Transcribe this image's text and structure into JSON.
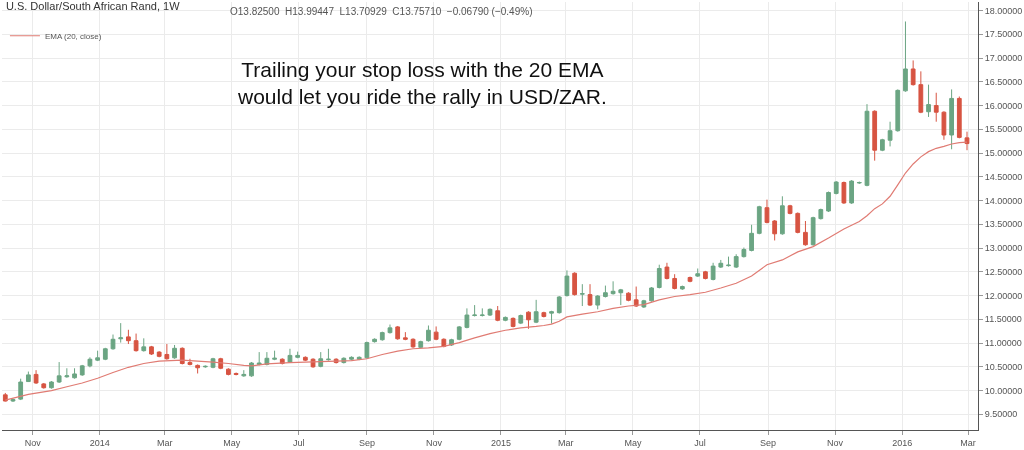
{
  "chart_data": {
    "type": "candlestick",
    "title": "U.S. Dollar/South African Rand, 1W",
    "annotations": [
      "O13.82500  H13.99447  L13.70929  C13.75710  −0.06790 (−0.49%)",
      "Trailing your stop loss with the 20 EMA would let you ride the rally in USD/ZAR."
    ],
    "colors": [
      "#d75442",
      "#6ba583",
      "#6ba583",
      "#6ba583",
      "#d75442",
      "#d75442",
      "#6ba583",
      "#6ba583",
      "#6ba583",
      "#6ba583",
      "#6ba583",
      "#6ba583",
      "#6ba583",
      "#6ba583",
      "#6ba583",
      "#6ba583",
      "#d75442",
      "#d75442",
      "#6ba583",
      "#d75442",
      "#d75442",
      "#d75442",
      "#6ba583",
      "#d75442",
      "#d75442",
      "#d75442",
      "#6ba583",
      "#6ba583",
      "#d75442",
      "#d75442",
      "#d75442",
      "#6ba583",
      "#6ba583",
      "#6ba583",
      "#6ba583",
      "#6ba583",
      "#d75442",
      "#6ba583",
      "#6ba583",
      "#d75442",
      "#d75442",
      "#6ba583",
      "#6ba583",
      "#d75442",
      "#6ba583",
      "#6ba583",
      "#6ba583",
      "#6ba583",
      "#6ba583",
      "#6ba583",
      "#6ba583",
      "#d75442",
      "#d75442",
      "#d75442",
      "#6ba583",
      "#6ba583",
      "#d75442",
      "#d75442",
      "#6ba583",
      "#6ba583",
      "#6ba583",
      "#6ba583",
      "#6ba583",
      "#6ba583",
      "#d75442",
      "#6ba583",
      "#d75442",
      "#6ba583",
      "#d75442",
      "#6ba583",
      "#d75442",
      "#6ba583",
      "#6ba583",
      "#6ba583",
      "#d75442",
      "#6ba583",
      "#d75442",
      "#6ba583",
      "#6ba583",
      "#6ba583",
      "#6ba583",
      "#d75442",
      "#d75442",
      "#6ba583",
      "#6ba583",
      "#6ba583",
      "#d75442",
      "#d75442",
      "#6ba583",
      "#d75442",
      "#6ba583",
      "#d75442",
      "#6ba583",
      "#6ba583",
      "#6ba583",
      "#6ba583",
      "#6ba583",
      "#6ba583",
      "#6ba583",
      "#d75442",
      "#d75442",
      "#6ba583",
      "#d75442",
      "#d75442",
      "#d75442",
      "#6ba583",
      "#6ba583",
      "#6ba583",
      "#6ba583",
      "#d75442",
      "#6ba583",
      "#6ba583",
      "#6ba583",
      "#d75442",
      "#6ba583",
      "#6ba583",
      "#6ba583",
      "#6ba583",
      "#d75442",
      "#d75442",
      "#6ba583",
      "#d75442",
      "#d75442",
      "#6ba583",
      "#d75442",
      "#d75442"
    ],
    "x": [
      "2013-10-07",
      "2013-10-14",
      "2013-10-21",
      "2013-10-28",
      "2013-11-04",
      "2013-11-11",
      "2013-11-18",
      "2013-11-25",
      "2013-12-02",
      "2013-12-09",
      "2013-12-16",
      "2013-12-23",
      "2013-12-30",
      "2014-01-06",
      "2014-01-13",
      "2014-01-20",
      "2014-01-27",
      "2014-02-03",
      "2014-02-10",
      "2014-02-17",
      "2014-02-24",
      "2014-03-03",
      "2014-03-10",
      "2014-03-17",
      "2014-03-24",
      "2014-03-31",
      "2014-04-07",
      "2014-04-14",
      "2014-04-21",
      "2014-04-28",
      "2014-05-05",
      "2014-05-12",
      "2014-05-19",
      "2014-05-26",
      "2014-06-02",
      "2014-06-09",
      "2014-06-16",
      "2014-06-23",
      "2014-06-30",
      "2014-07-07",
      "2014-07-14",
      "2014-07-21",
      "2014-07-28",
      "2014-08-04",
      "2014-08-11",
      "2014-08-18",
      "2014-08-25",
      "2014-09-01",
      "2014-09-08",
      "2014-09-15",
      "2014-09-22",
      "2014-09-29",
      "2014-10-06",
      "2014-10-13",
      "2014-10-20",
      "2014-10-27",
      "2014-11-03",
      "2014-11-10",
      "2014-11-17",
      "2014-11-24",
      "2014-12-01",
      "2014-12-08",
      "2014-12-15",
      "2014-12-22",
      "2014-12-29",
      "2015-01-05",
      "2015-01-12",
      "2015-01-19",
      "2015-01-26",
      "2015-02-02",
      "2015-02-09",
      "2015-02-16",
      "2015-02-23",
      "2015-03-02",
      "2015-03-09",
      "2015-03-16",
      "2015-03-23",
      "2015-03-30",
      "2015-04-06",
      "2015-04-13",
      "2015-04-20",
      "2015-04-27",
      "2015-05-04",
      "2015-05-11",
      "2015-05-18",
      "2015-05-25",
      "2015-06-01",
      "2015-06-08",
      "2015-06-15",
      "2015-06-22",
      "2015-06-29",
      "2015-07-06",
      "2015-07-13",
      "2015-07-20",
      "2015-07-27",
      "2015-08-03",
      "2015-08-10",
      "2015-08-17",
      "2015-08-24",
      "2015-08-31",
      "2015-09-07",
      "2015-09-14",
      "2015-09-21",
      "2015-09-28",
      "2015-10-05",
      "2015-10-12",
      "2015-10-19",
      "2015-10-26",
      "2015-11-02",
      "2015-11-09",
      "2015-11-16",
      "2015-11-23",
      "2015-11-30",
      "2015-12-07",
      "2015-12-14",
      "2015-12-21",
      "2015-12-28",
      "2016-01-04",
      "2016-01-11",
      "2016-01-18",
      "2016-01-25",
      "2016-02-01",
      "2016-02-08",
      "2016-02-15",
      "2016-02-22",
      "2016-02-29"
    ],
    "ohlc": [
      [
        9.91,
        9.95,
        9.77,
        9.78
      ],
      [
        9.78,
        9.83,
        9.76,
        9.81
      ],
      [
        9.82,
        10.25,
        9.8,
        10.18
      ],
      [
        10.19,
        10.4,
        10.18,
        10.33
      ],
      [
        10.34,
        10.43,
        10.14,
        10.16
      ],
      [
        10.14,
        10.16,
        10.04,
        10.06
      ],
      [
        10.06,
        10.2,
        10.04,
        10.18
      ],
      [
        10.18,
        10.6,
        10.16,
        10.31
      ],
      [
        10.29,
        10.47,
        10.27,
        10.31
      ],
      [
        10.27,
        10.47,
        10.25,
        10.35
      ],
      [
        10.33,
        10.54,
        10.31,
        10.52
      ],
      [
        10.52,
        10.7,
        10.49,
        10.66
      ],
      [
        10.64,
        10.84,
        10.62,
        10.69
      ],
      [
        10.66,
        10.9,
        10.64,
        10.88
      ],
      [
        10.88,
        11.18,
        10.86,
        11.08
      ],
      [
        11.09,
        11.42,
        11.01,
        11.11
      ],
      [
        11.13,
        11.28,
        10.98,
        11.05
      ],
      [
        11.05,
        11.2,
        10.82,
        10.84
      ],
      [
        10.84,
        11.1,
        10.82,
        10.92
      ],
      [
        10.92,
        10.94,
        10.75,
        10.77
      ],
      [
        10.81,
        10.83,
        10.7,
        10.72
      ],
      [
        10.76,
        10.98,
        10.65,
        10.67
      ],
      [
        10.69,
        10.96,
        10.67,
        10.89
      ],
      [
        10.89,
        10.91,
        10.55,
        10.57
      ],
      [
        10.59,
        10.67,
        10.53,
        10.55
      ],
      [
        10.53,
        10.55,
        10.36,
        10.48
      ],
      [
        10.5,
        10.53,
        10.48,
        10.51
      ],
      [
        10.49,
        10.69,
        10.47,
        10.67
      ],
      [
        10.67,
        10.69,
        10.45,
        10.47
      ],
      [
        10.45,
        10.47,
        10.32,
        10.34
      ],
      [
        10.36,
        10.38,
        10.32,
        10.34
      ],
      [
        10.31,
        10.43,
        10.29,
        10.34
      ],
      [
        10.31,
        10.6,
        10.29,
        10.58
      ],
      [
        10.55,
        10.81,
        10.53,
        10.58
      ],
      [
        10.55,
        10.81,
        10.53,
        10.68
      ],
      [
        10.66,
        10.84,
        10.64,
        10.68
      ],
      [
        10.66,
        10.68,
        10.55,
        10.57
      ],
      [
        10.6,
        10.88,
        10.58,
        10.74
      ],
      [
        10.7,
        10.82,
        10.68,
        10.74
      ],
      [
        10.7,
        10.72,
        10.62,
        10.64
      ],
      [
        10.66,
        10.68,
        10.48,
        10.5
      ],
      [
        10.51,
        10.81,
        10.49,
        10.67
      ],
      [
        10.65,
        10.88,
        10.63,
        10.66
      ],
      [
        10.66,
        10.68,
        10.57,
        10.59
      ],
      [
        10.59,
        10.7,
        10.57,
        10.68
      ],
      [
        10.66,
        10.72,
        10.64,
        10.7
      ],
      [
        10.66,
        10.72,
        10.64,
        10.7
      ],
      [
        10.69,
        11.03,
        10.67,
        11.01
      ],
      [
        11.03,
        11.1,
        11.01,
        11.08
      ],
      [
        11.07,
        11.24,
        11.05,
        11.22
      ],
      [
        11.22,
        11.39,
        11.2,
        11.32
      ],
      [
        11.34,
        11.36,
        11.07,
        11.09
      ],
      [
        11.11,
        11.23,
        11.06,
        11.08
      ],
      [
        11.08,
        11.1,
        10.9,
        10.92
      ],
      [
        10.91,
        11.05,
        10.89,
        11.03
      ],
      [
        11.05,
        11.37,
        11.03,
        11.27
      ],
      [
        11.23,
        11.35,
        11.06,
        11.08
      ],
      [
        11.08,
        11.1,
        10.91,
        10.93
      ],
      [
        10.96,
        11.09,
        10.94,
        11.07
      ],
      [
        11.08,
        11.36,
        11.06,
        11.34
      ],
      [
        11.33,
        11.73,
        11.31,
        11.59
      ],
      [
        11.58,
        11.8,
        11.56,
        11.59
      ],
      [
        11.58,
        11.73,
        11.56,
        11.59
      ],
      [
        11.59,
        11.73,
        11.57,
        11.71
      ],
      [
        11.68,
        11.78,
        11.46,
        11.48
      ],
      [
        11.48,
        11.56,
        11.46,
        11.54
      ],
      [
        11.52,
        11.54,
        11.33,
        11.35
      ],
      [
        11.42,
        11.6,
        11.4,
        11.58
      ],
      [
        11.65,
        11.67,
        11.3,
        11.49
      ],
      [
        11.44,
        11.91,
        11.42,
        11.66
      ],
      [
        11.64,
        11.66,
        11.54,
        11.56
      ],
      [
        11.63,
        11.68,
        11.41,
        11.66
      ],
      [
        11.64,
        11.99,
        11.62,
        11.97
      ],
      [
        12.0,
        12.53,
        11.98,
        12.41
      ],
      [
        12.47,
        12.49,
        12.0,
        12.02
      ],
      [
        12.03,
        12.24,
        11.78,
        12.04
      ],
      [
        12.02,
        12.24,
        11.78,
        11.8
      ],
      [
        11.8,
        12.01,
        11.71,
        11.99
      ],
      [
        11.98,
        12.21,
        11.96,
        12.06
      ],
      [
        12.04,
        12.3,
        12.02,
        12.09
      ],
      [
        12.06,
        12.14,
        11.8,
        12.12
      ],
      [
        12.05,
        12.07,
        11.88,
        11.9
      ],
      [
        11.91,
        12.19,
        11.76,
        11.78
      ],
      [
        11.76,
        11.91,
        11.74,
        11.89
      ],
      [
        11.89,
        12.18,
        11.87,
        12.16
      ],
      [
        12.17,
        12.65,
        12.15,
        12.57
      ],
      [
        12.6,
        12.69,
        12.34,
        12.36
      ],
      [
        12.36,
        12.45,
        12.13,
        12.15
      ],
      [
        12.14,
        12.21,
        12.12,
        12.19
      ],
      [
        12.38,
        12.4,
        12.28,
        12.3
      ],
      [
        12.41,
        12.57,
        12.39,
        12.46
      ],
      [
        12.5,
        12.52,
        12.34,
        12.36
      ],
      [
        12.34,
        12.69,
        12.32,
        12.62
      ],
      [
        12.6,
        12.75,
        12.58,
        12.68
      ],
      [
        12.63,
        12.82,
        12.61,
        12.64
      ],
      [
        12.6,
        12.87,
        12.58,
        12.82
      ],
      [
        12.82,
        13.01,
        12.8,
        12.97
      ],
      [
        12.95,
        13.49,
        12.93,
        13.31
      ],
      [
        13.31,
        13.89,
        13.29,
        13.87
      ],
      [
        13.85,
        14.02,
        13.52,
        13.54
      ],
      [
        13.57,
        13.59,
        13.16,
        13.3
      ],
      [
        13.3,
        14.09,
        13.28,
        13.89
      ],
      [
        13.89,
        13.91,
        13.71,
        13.73
      ],
      [
        13.73,
        13.75,
        13.31,
        13.33
      ],
      [
        13.33,
        13.57,
        13.05,
        13.07
      ],
      [
        13.07,
        13.66,
        13.05,
        13.64
      ],
      [
        13.62,
        13.83,
        13.6,
        13.81
      ],
      [
        13.78,
        14.19,
        13.76,
        14.17
      ],
      [
        14.15,
        14.41,
        14.13,
        14.39
      ],
      [
        14.38,
        14.4,
        13.93,
        13.95
      ],
      [
        13.95,
        14.43,
        13.93,
        14.41
      ],
      [
        14.37,
        14.4,
        14.35,
        14.38
      ],
      [
        14.32,
        16.03,
        14.3,
        15.88
      ],
      [
        15.88,
        15.9,
        14.84,
        15.06
      ],
      [
        15.06,
        15.3,
        15.04,
        15.28
      ],
      [
        15.27,
        15.66,
        15.14,
        15.47
      ],
      [
        15.47,
        16.34,
        15.45,
        16.32
      ],
      [
        16.31,
        17.77,
        16.29,
        16.77
      ],
      [
        16.77,
        16.95,
        16.42,
        16.44
      ],
      [
        16.44,
        16.72,
        15.84,
        15.86
      ],
      [
        15.87,
        16.44,
        15.76,
        16.02
      ],
      [
        16.0,
        16.27,
        15.66,
        15.86
      ],
      [
        15.86,
        15.88,
        15.28,
        15.38
      ],
      [
        15.38,
        16.34,
        15.08,
        16.15
      ],
      [
        16.15,
        16.19,
        15.31,
        15.33
      ],
      [
        15.32,
        15.45,
        15.06,
        15.2
      ]
    ],
    "series": [
      {
        "type": "line",
        "name": "EMA (20, close)",
        "color": "#e07b73",
        "x": [
          "2013-10-07",
          "2013-10-28",
          "2013-11-18",
          "2013-12-02",
          "2013-12-16",
          "2013-12-30",
          "2014-01-13",
          "2014-01-27",
          "2014-02-10",
          "2014-02-24",
          "2014-03-17",
          "2014-03-31",
          "2014-04-14",
          "2014-04-28",
          "2014-05-12",
          "2014-05-19",
          "2014-06-02",
          "2014-06-23",
          "2014-07-21",
          "2014-08-18",
          "2014-09-01",
          "2014-09-15",
          "2014-09-29",
          "2014-10-13",
          "2014-10-27",
          "2014-11-10",
          "2014-11-24",
          "2014-12-08",
          "2014-12-22",
          "2015-01-05",
          "2015-01-19",
          "2015-02-02",
          "2015-02-09",
          "2015-02-16",
          "2015-02-23",
          "2015-03-02",
          "2015-03-16",
          "2015-03-30",
          "2015-04-13",
          "2015-04-27",
          "2015-05-11",
          "2015-05-25",
          "2015-06-08",
          "2015-06-22",
          "2015-07-06",
          "2015-07-20",
          "2015-08-03",
          "2015-08-17",
          "2015-08-31",
          "2015-09-14",
          "2015-09-28",
          "2015-10-12",
          "2015-10-26",
          "2015-11-09",
          "2015-11-16",
          "2015-11-23",
          "2015-11-30",
          "2015-12-07",
          "2015-12-14",
          "2015-12-21",
          "2015-12-28",
          "2016-01-04",
          "2016-01-11",
          "2016-01-18",
          "2016-01-25",
          "2016-02-01",
          "2016-02-08",
          "2016-02-15",
          "2016-02-22",
          "2016-02-29"
        ],
        "values": [
          9.8,
          9.92,
          10.0,
          10.08,
          10.16,
          10.26,
          10.38,
          10.49,
          10.57,
          10.62,
          10.64,
          10.62,
          10.6,
          10.57,
          10.53,
          10.52,
          10.56,
          10.59,
          10.61,
          10.63,
          10.67,
          10.76,
          10.83,
          10.88,
          10.9,
          10.93,
          11.01,
          11.11,
          11.2,
          11.27,
          11.32,
          11.35,
          11.37,
          11.4,
          11.46,
          11.55,
          11.61,
          11.66,
          11.73,
          11.78,
          11.81,
          11.91,
          11.98,
          12.02,
          12.07,
          12.16,
          12.26,
          12.41,
          12.65,
          12.75,
          12.92,
          13.03,
          13.21,
          13.4,
          13.48,
          13.56,
          13.68,
          13.83,
          13.93,
          14.09,
          14.33,
          14.58,
          14.77,
          14.92,
          15.03,
          15.1,
          15.14,
          15.19,
          15.22,
          15.23
        ]
      }
    ],
    "xlim": [
      "2013-10-04",
      "2016-03-10"
    ],
    "xticks": [
      {
        "value": "2013-11-01",
        "label": "Nov"
      },
      {
        "value": "2014-01-01",
        "label": "2014"
      },
      {
        "value": "2014-03-01",
        "label": "Mar"
      },
      {
        "value": "2014-05-01",
        "label": "May"
      },
      {
        "value": "2014-07-01",
        "label": "Jul"
      },
      {
        "value": "2014-09-01",
        "label": "Sep"
      },
      {
        "value": "2014-11-01",
        "label": "Nov"
      },
      {
        "value": "2015-01-01",
        "label": "2015"
      },
      {
        "value": "2015-03-01",
        "label": "Mar"
      },
      {
        "value": "2015-05-01",
        "label": "May"
      },
      {
        "value": "2015-07-01",
        "label": "Jul"
      },
      {
        "value": "2015-09-01",
        "label": "Sep"
      },
      {
        "value": "2015-11-01",
        "label": "Nov"
      },
      {
        "value": "2016-01-01",
        "label": "2016"
      },
      {
        "value": "2016-03-01",
        "label": "Mar"
      }
    ],
    "ylim": [
      9.17,
      18.18
    ],
    "yticks": [
      {
        "value": 9.5,
        "label": "9.50000"
      },
      {
        "value": 10,
        "label": "10.00000"
      },
      {
        "value": 10.5,
        "label": "10.50000"
      },
      {
        "value": 11,
        "label": "11.00000"
      },
      {
        "value": 11.5,
        "label": "11.50000"
      },
      {
        "value": 12,
        "label": "12.00000"
      },
      {
        "value": 12.5,
        "label": "12.50000"
      },
      {
        "value": 13,
        "label": "13.00000"
      },
      {
        "value": 13.5,
        "label": "13.50000"
      },
      {
        "value": 14,
        "label": "14.00000"
      },
      {
        "value": 14.5,
        "label": "14.50000"
      },
      {
        "value": 15,
        "label": "15.00000"
      },
      {
        "value": 15.5,
        "label": "15.50000"
      },
      {
        "value": 16,
        "label": "16.00000"
      },
      {
        "value": 16.5,
        "label": "16.50000"
      },
      {
        "value": 17,
        "label": "17.00000"
      },
      {
        "value": 17.5,
        "label": "17.50000"
      },
      {
        "value": 18,
        "label": "18.00000"
      }
    ],
    "grid": true,
    "legend": "top left"
  }
}
